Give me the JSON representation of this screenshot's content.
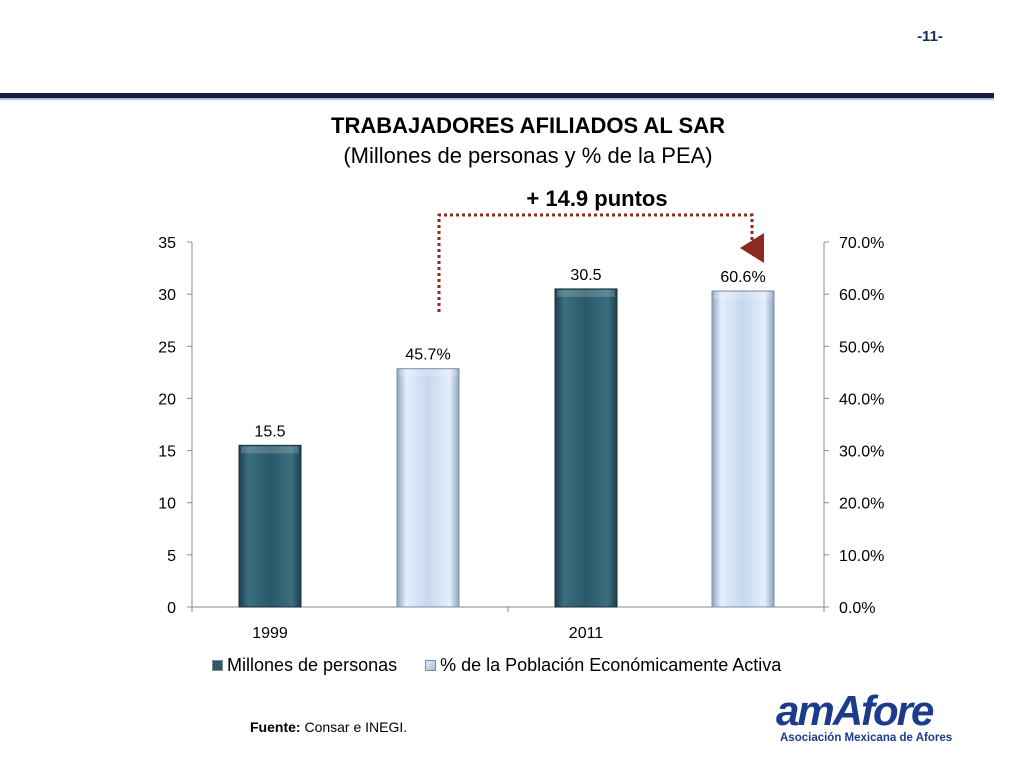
{
  "page": {
    "number": "-11-"
  },
  "header": {
    "title": "TRABAJADORES AFILIADOS AL SAR",
    "subtitle": "(Millones de personas y % de la PEA)"
  },
  "annotation": {
    "text": "+ 14.9 puntos"
  },
  "chart_data": {
    "type": "bar",
    "categories": [
      "1999",
      "2011"
    ],
    "series": [
      {
        "name": "Millones de personas",
        "axis": "left",
        "values": [
          15.5,
          30.5
        ],
        "labels": [
          "15.5",
          "30.5"
        ],
        "color": "#2c5a6a"
      },
      {
        "name": "% de la Población Económicamente Activa",
        "axis": "right",
        "values": [
          45.7,
          60.6
        ],
        "labels": [
          "45.7%",
          "60.6%"
        ],
        "color": "#c6d7ef"
      }
    ],
    "y_left": {
      "range": [
        0,
        35
      ],
      "ticks": [
        "0",
        "5",
        "10",
        "15",
        "20",
        "25",
        "30",
        "35"
      ]
    },
    "y_right": {
      "range": [
        0,
        70
      ],
      "ticks": [
        "0.0%",
        "10.0%",
        "20.0%",
        "30.0%",
        "40.0%",
        "50.0%",
        "60.0%",
        "70.0%"
      ]
    },
    "grid": false,
    "legend_position": "bottom"
  },
  "footer": {
    "source_label": "Fuente:",
    "source_text": " Consar e INEGI."
  },
  "logo": {
    "name": "amAfore",
    "tagline": "Asociación Mexicana de Afores"
  }
}
